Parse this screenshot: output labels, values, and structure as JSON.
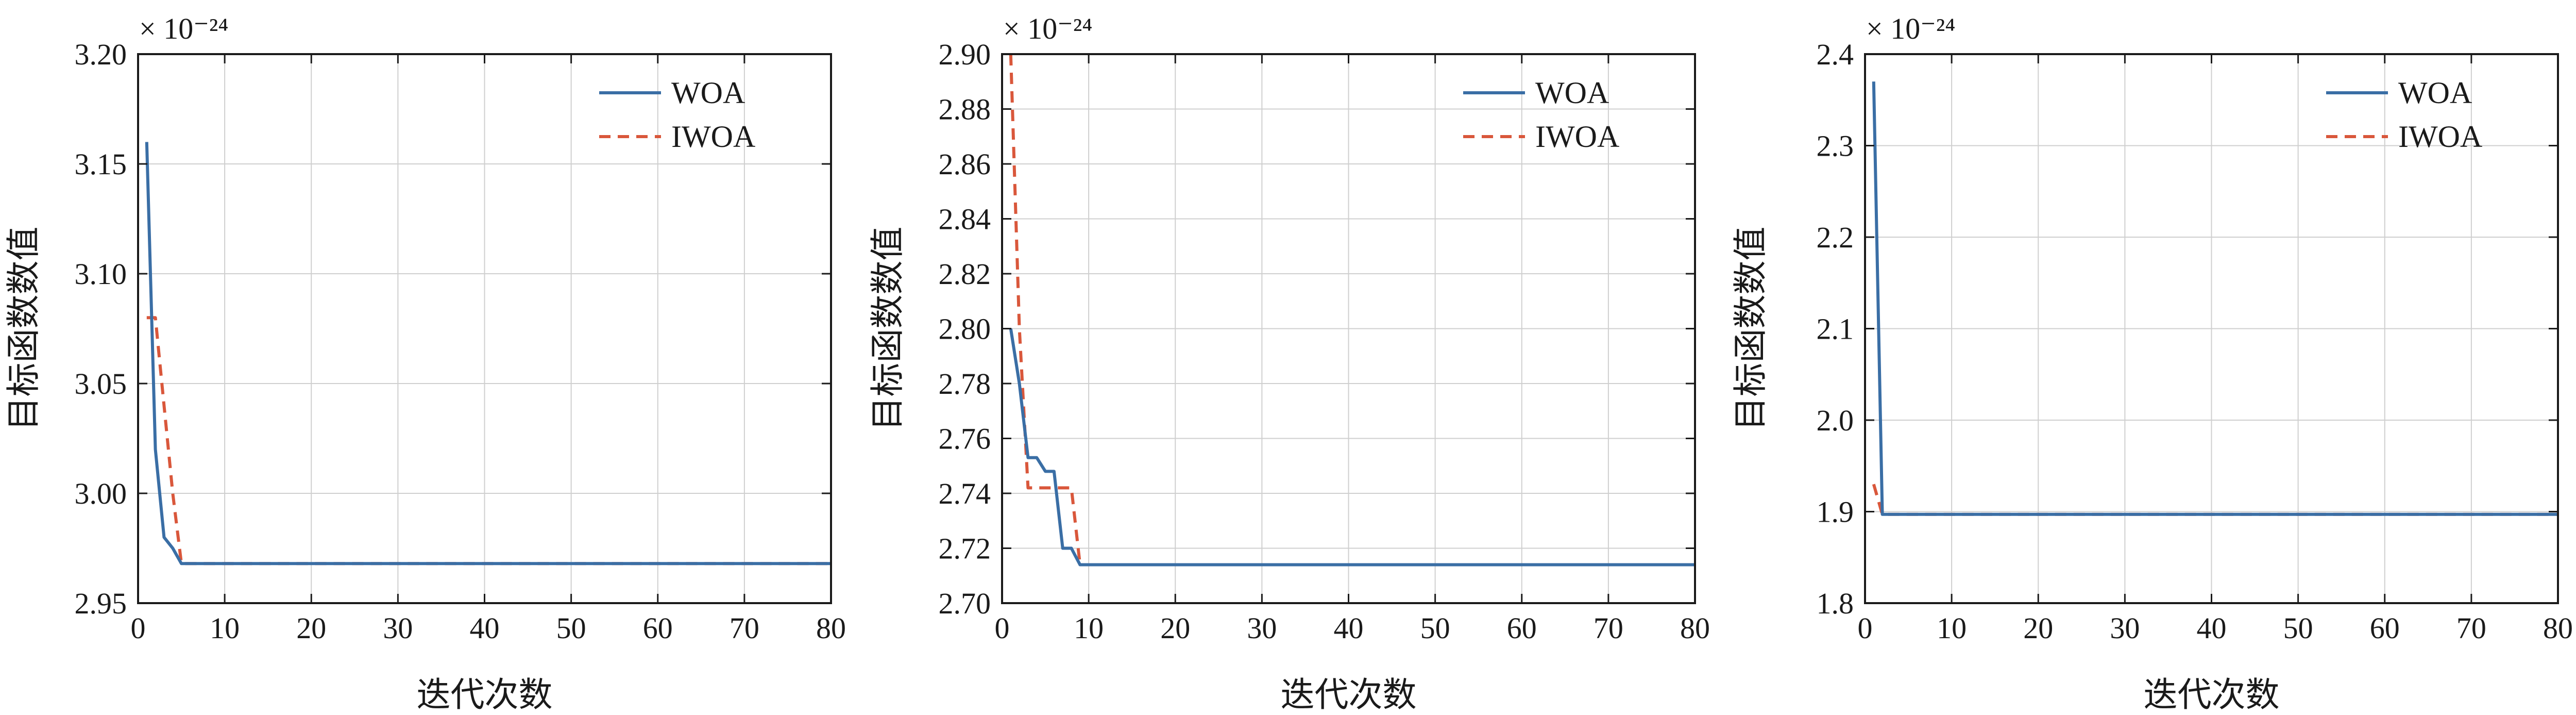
{
  "colors": {
    "woa": "#3a6ea5",
    "iwoa": "#d9573b",
    "grid": "#cfcfcf",
    "axis": "#1a1a1a"
  },
  "chart_data": [
    {
      "type": "line",
      "xlabel": "迭代次数",
      "ylabel": "目标函数数值",
      "scale_label": "× 10⁻²⁴",
      "xlim": [
        0,
        80
      ],
      "ylim": [
        2.95,
        3.2
      ],
      "xticks": [
        0,
        10,
        20,
        30,
        40,
        50,
        60,
        70,
        80
      ],
      "yticks": [
        2.95,
        3.0,
        3.05,
        3.1,
        3.15,
        3.2
      ],
      "ytick_labels": [
        "2.95",
        "3.00",
        "3.05",
        "3.10",
        "3.15",
        "3.20"
      ],
      "grid": true,
      "legend": "top-right",
      "series": [
        {
          "name": "WOA",
          "style": "solid",
          "x": [
            1,
            2,
            3,
            4,
            5,
            80
          ],
          "y": [
            3.16,
            3.02,
            2.98,
            2.975,
            2.968,
            2.968
          ]
        },
        {
          "name": "IWOA",
          "style": "dashed",
          "x": [
            1,
            2,
            3,
            4,
            5,
            80
          ],
          "y": [
            3.08,
            3.08,
            3.04,
            3.0,
            2.968,
            2.968
          ]
        }
      ]
    },
    {
      "type": "line",
      "xlabel": "迭代次数",
      "ylabel": "目标函数数值",
      "scale_label": "× 10⁻²⁴",
      "xlim": [
        0,
        80
      ],
      "ylim": [
        2.7,
        2.9
      ],
      "xticks": [
        0,
        10,
        20,
        30,
        40,
        50,
        60,
        70,
        80
      ],
      "yticks": [
        2.7,
        2.72,
        2.74,
        2.76,
        2.78,
        2.8,
        2.82,
        2.84,
        2.86,
        2.88,
        2.9
      ],
      "ytick_labels": [
        "2.70",
        "2.72",
        "2.74",
        "2.76",
        "2.78",
        "2.80",
        "2.82",
        "2.84",
        "2.86",
        "2.88",
        "2.90"
      ],
      "grid": true,
      "legend": "top-right",
      "series": [
        {
          "name": "WOA",
          "style": "solid",
          "x": [
            1,
            2,
            3,
            4,
            5,
            6,
            7,
            8,
            9,
            80
          ],
          "y": [
            2.8,
            2.78,
            2.753,
            2.753,
            2.748,
            2.748,
            2.72,
            2.72,
            2.714,
            2.714
          ]
        },
        {
          "name": "IWOA",
          "style": "dashed",
          "x": [
            1,
            2,
            3,
            4,
            5,
            6,
            7,
            8,
            9,
            80
          ],
          "y": [
            2.9,
            2.8,
            2.742,
            2.742,
            2.742,
            2.742,
            2.742,
            2.742,
            2.714,
            2.714
          ]
        }
      ]
    },
    {
      "type": "line",
      "xlabel": "迭代次数",
      "ylabel": "目标函数数值",
      "scale_label": "× 10⁻²⁴",
      "xlim": [
        0,
        80
      ],
      "ylim": [
        1.8,
        2.4
      ],
      "xticks": [
        0,
        10,
        20,
        30,
        40,
        50,
        60,
        70,
        80
      ],
      "yticks": [
        1.8,
        1.9,
        2.0,
        2.1,
        2.2,
        2.3,
        2.4
      ],
      "ytick_labels": [
        "1.8",
        "1.9",
        "2.0",
        "2.1",
        "2.2",
        "2.3",
        "2.4"
      ],
      "grid": true,
      "legend": "top-right",
      "series": [
        {
          "name": "WOA",
          "style": "solid",
          "x": [
            1,
            2,
            80
          ],
          "y": [
            2.37,
            1.897,
            1.897
          ]
        },
        {
          "name": "IWOA",
          "style": "dashed",
          "x": [
            1,
            2,
            80
          ],
          "y": [
            1.93,
            1.897,
            1.897
          ]
        }
      ]
    }
  ]
}
